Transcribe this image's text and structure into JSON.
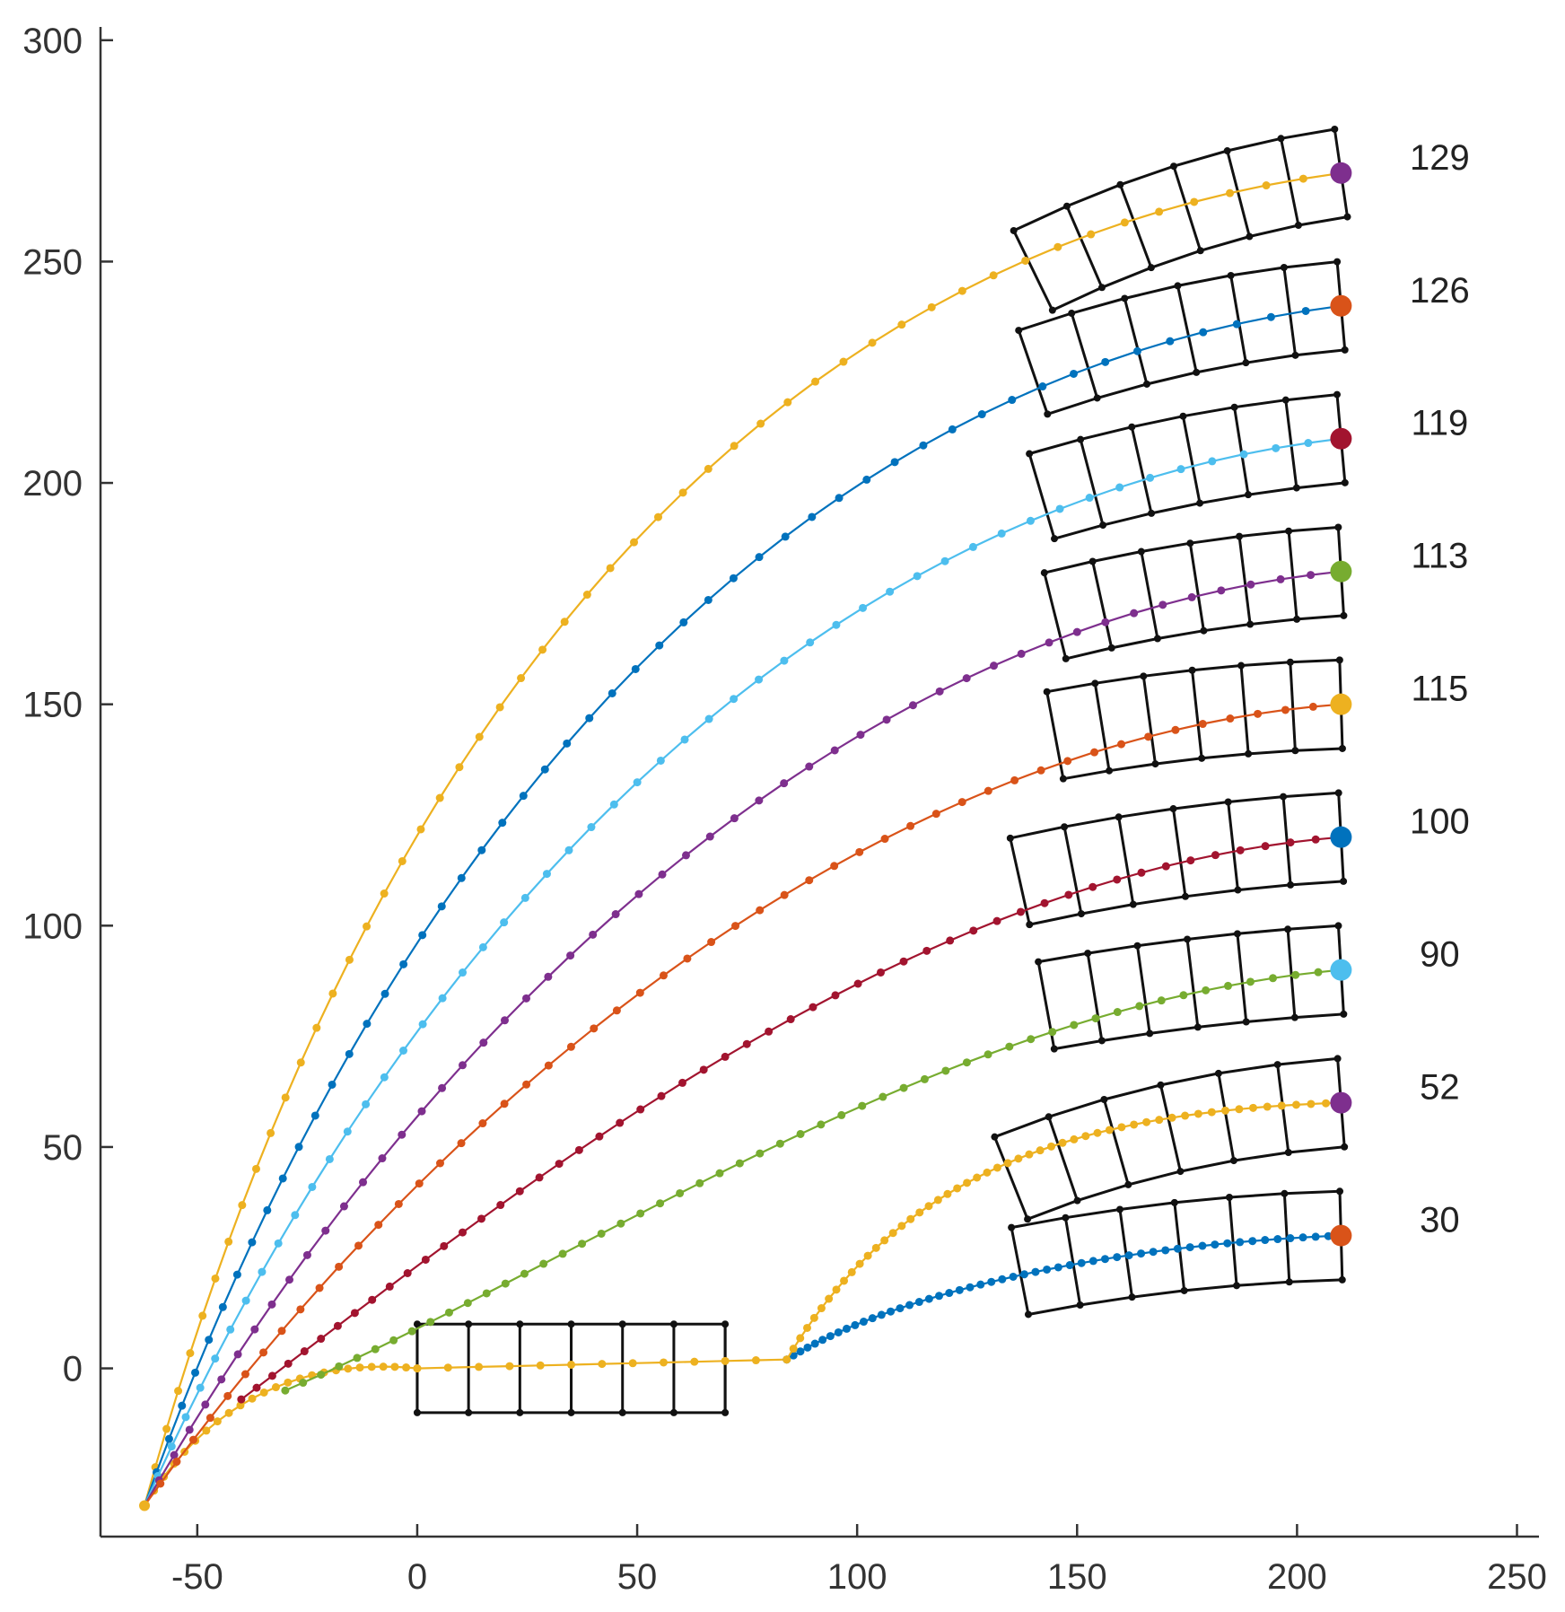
{
  "chart_data": {
    "type": "line",
    "title": "",
    "xlabel": "",
    "ylabel": "",
    "xlim": [
      -72,
      255
    ],
    "ylim": [
      -38,
      303
    ],
    "x_ticks": [
      -50,
      0,
      50,
      100,
      150,
      200,
      250
    ],
    "y_ticks": [
      0,
      50,
      100,
      150,
      200,
      250,
      300
    ],
    "x_tick_labels": [
      "-50",
      "0",
      "50",
      "100",
      "150",
      "200",
      "250"
    ],
    "y_tick_labels": [
      "0",
      "50",
      "100",
      "150",
      "200",
      "250",
      "300"
    ],
    "grid": false,
    "start_point": [
      -62,
      -31
    ],
    "goal_x": 210,
    "goals": [
      {
        "label": "129",
        "y": 270,
        "color": "#7E2F8E"
      },
      {
        "label": "126",
        "y": 240,
        "color": "#D95319"
      },
      {
        "label": "119",
        "y": 210,
        "color": "#A2142F"
      },
      {
        "label": "113",
        "y": 180,
        "color": "#77AC30"
      },
      {
        "label": "115",
        "y": 150,
        "color": "#EDB120"
      },
      {
        "label": "100",
        "y": 120,
        "color": "#0072BD"
      },
      {
        "label": "90",
        "y": 90,
        "color": "#4DBEEE"
      },
      {
        "label": "52",
        "y": 60,
        "color": "#7E2F8E"
      },
      {
        "label": "30",
        "y": 30,
        "color": "#D95319"
      }
    ],
    "series": [
      {
        "goal": "129",
        "color": "#EDB120",
        "control": [
          [
            -62,
            -31
          ],
          [
            -20,
            120
          ],
          [
            60,
            250
          ],
          [
            210,
            270
          ]
        ]
      },
      {
        "goal": "126",
        "color": "#0072BD",
        "control": [
          [
            -62,
            -31
          ],
          [
            -15,
            100
          ],
          [
            70,
            222
          ],
          [
            210,
            240
          ]
        ]
      },
      {
        "goal": "119",
        "color": "#4DBEEE",
        "control": [
          [
            -62,
            -31
          ],
          [
            -10,
            85
          ],
          [
            80,
            195
          ],
          [
            210,
            210
          ]
        ]
      },
      {
        "goal": "113",
        "color": "#7E2F8E",
        "control": [
          [
            -62,
            -31
          ],
          [
            -5,
            68
          ],
          [
            90,
            168
          ],
          [
            210,
            180
          ]
        ]
      },
      {
        "goal": "115",
        "color": "#D95319",
        "control": [
          [
            -62,
            -31
          ],
          [
            0,
            55
          ],
          [
            100,
            142
          ],
          [
            210,
            150
          ]
        ]
      },
      {
        "goal": "100",
        "color": "#A2142F",
        "control": [
          [
            -40,
            -7
          ],
          [
            20,
            38
          ],
          [
            110,
            112
          ],
          [
            210,
            120
          ]
        ]
      },
      {
        "goal": "90",
        "color": "#77AC30",
        "control": [
          [
            -30,
            -5
          ],
          [
            40,
            25
          ],
          [
            120,
            82
          ],
          [
            210,
            90
          ]
        ]
      },
      {
        "goal": "30",
        "color": "#0072BD",
        "control": [
          [
            84,
            2
          ],
          [
            110,
            18
          ],
          [
            160,
            28
          ],
          [
            210,
            30
          ]
        ]
      },
      {
        "goal": "52",
        "color": "#EDB120",
        "control": [
          [
            84,
            2
          ],
          [
            110,
            45
          ],
          [
            150,
            58
          ],
          [
            210,
            60
          ]
        ]
      }
    ],
    "start_spur": {
      "color": "#EDB120",
      "control": [
        [
          -62,
          -31
        ],
        [
          -45,
          -3
        ],
        [
          -20,
          2
        ],
        [
          0,
          0
        ]
      ]
    },
    "straight_segment": {
      "color": "#EDB120",
      "from": [
        0,
        0
      ],
      "to": [
        84,
        2
      ]
    },
    "footprints": [
      {
        "type": "rect",
        "x": [
          0,
          70
        ],
        "y": [
          -10,
          10
        ],
        "columns": 6
      },
      {
        "type": "arc",
        "goal": "129",
        "centerline": [
          [
            140,
            248
          ],
          [
            175,
            265
          ],
          [
            210,
            270
          ]
        ],
        "columns": 6,
        "half_width": 10
      },
      {
        "type": "arc",
        "goal": "126",
        "centerline": [
          [
            140,
            225
          ],
          [
            175,
            237
          ],
          [
            210,
            240
          ]
        ],
        "columns": 6,
        "half_width": 10
      },
      {
        "type": "arc",
        "goal": "119",
        "centerline": [
          [
            142,
            197
          ],
          [
            176,
            207
          ],
          [
            210,
            210
          ]
        ],
        "columns": 6,
        "half_width": 10
      },
      {
        "type": "arc",
        "goal": "113",
        "centerline": [
          [
            145,
            170
          ],
          [
            177,
            178
          ],
          [
            210,
            180
          ]
        ],
        "columns": 6,
        "half_width": 10
      },
      {
        "type": "arc",
        "goal": "115",
        "centerline": [
          [
            145,
            143
          ],
          [
            177,
            149
          ],
          [
            210,
            150
          ]
        ],
        "columns": 6,
        "half_width": 10
      },
      {
        "type": "arc",
        "goal": "100",
        "centerline": [
          [
            137,
            110
          ],
          [
            173,
            118
          ],
          [
            210,
            120
          ]
        ],
        "columns": 6,
        "half_width": 10
      },
      {
        "type": "arc",
        "goal": "90",
        "centerline": [
          [
            143,
            82
          ],
          [
            176,
            88
          ],
          [
            210,
            90
          ]
        ],
        "columns": 6,
        "half_width": 10
      },
      {
        "type": "arc",
        "goal": "52",
        "centerline": [
          [
            135,
            43
          ],
          [
            170,
            57
          ],
          [
            210,
            60
          ]
        ],
        "columns": 6,
        "half_width": 10
      },
      {
        "type": "arc",
        "goal": "30",
        "centerline": [
          [
            137,
            22
          ],
          [
            173,
            29
          ],
          [
            210,
            30
          ]
        ],
        "columns": 6,
        "half_width": 10
      }
    ]
  }
}
